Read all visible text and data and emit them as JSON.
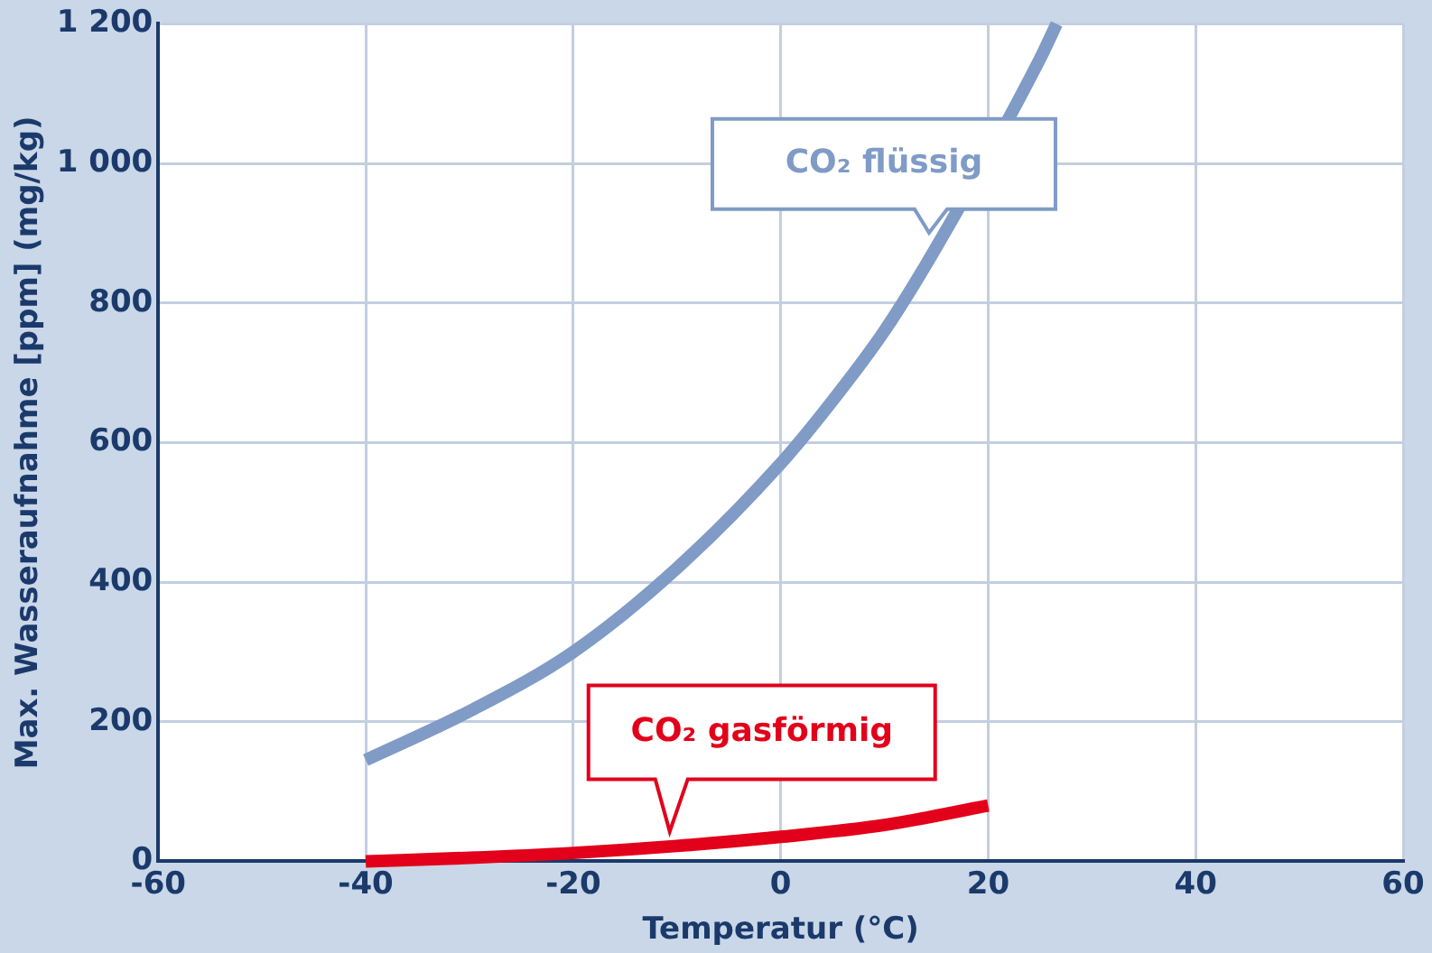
{
  "chart_data": {
    "type": "line",
    "xlabel": "Temperatur (°C)",
    "ylabel": "Max. Wasseraufnahme [ppm] (mg/kg)",
    "xlim": [
      -60,
      60
    ],
    "xticks": [
      -60,
      -40,
      -20,
      0,
      20,
      40,
      60
    ],
    "ylim": [
      0,
      1200
    ],
    "yticks": [
      0,
      200,
      400,
      600,
      800,
      {
        "value": 1000,
        "label": "1 000"
      },
      {
        "value": 1200,
        "label": "1 200"
      }
    ],
    "grid": true,
    "legend": false,
    "marker": "none",
    "line_style": "solid",
    "series": [
      {
        "name": "CO₂ flüssig",
        "color": "#7f9bc6",
        "x": [
          -40,
          -30,
          -20,
          -10,
          0,
          5,
          10,
          15,
          25,
          26.6
        ],
        "values": [
          145,
          215,
          300,
          420,
          570,
          660,
          760,
          880,
          1150,
          1200
        ]
      },
      {
        "name": "CO₂ gasförmig",
        "color": "#e2001a",
        "x": [
          -40,
          -30,
          -20,
          -10,
          0,
          10,
          20
        ],
        "values": [
          0,
          5,
          12,
          22,
          35,
          52,
          80
        ]
      }
    ]
  }
}
